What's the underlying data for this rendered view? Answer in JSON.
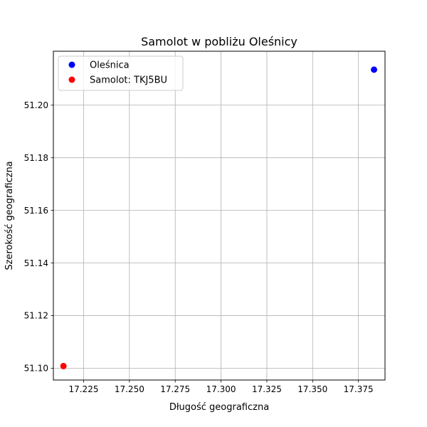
{
  "chart_data": {
    "type": "scatter",
    "title": "Samolot w pobliżu Oleśnicy",
    "xlabel": "Długość geograficzna",
    "ylabel": "Szerokość geograficzna",
    "xlim": [
      17.2085,
      17.3895
    ],
    "ylim": [
      51.0955,
      51.2205
    ],
    "x_ticks": [
      17.225,
      17.25,
      17.275,
      17.3,
      17.325,
      17.35,
      17.375
    ],
    "y_ticks": [
      51.1,
      51.12,
      51.14,
      51.16,
      51.18,
      51.2
    ],
    "x_tick_labels": [
      "17.225",
      "17.250",
      "17.275",
      "17.300",
      "17.325",
      "17.350",
      "17.375"
    ],
    "y_tick_labels": [
      "51.10",
      "51.12",
      "51.14",
      "51.16",
      "51.18",
      "51.20"
    ],
    "grid": true,
    "legend_position": "top-left",
    "series": [
      {
        "name": "Oleśnica",
        "color": "#0000ff",
        "points": [
          {
            "x": 17.3835,
            "y": 51.2135
          }
        ]
      },
      {
        "name": "Samolot: TKJ5BU",
        "color": "#ff0000",
        "points": [
          {
            "x": 17.214,
            "y": 51.1008
          }
        ]
      }
    ]
  }
}
